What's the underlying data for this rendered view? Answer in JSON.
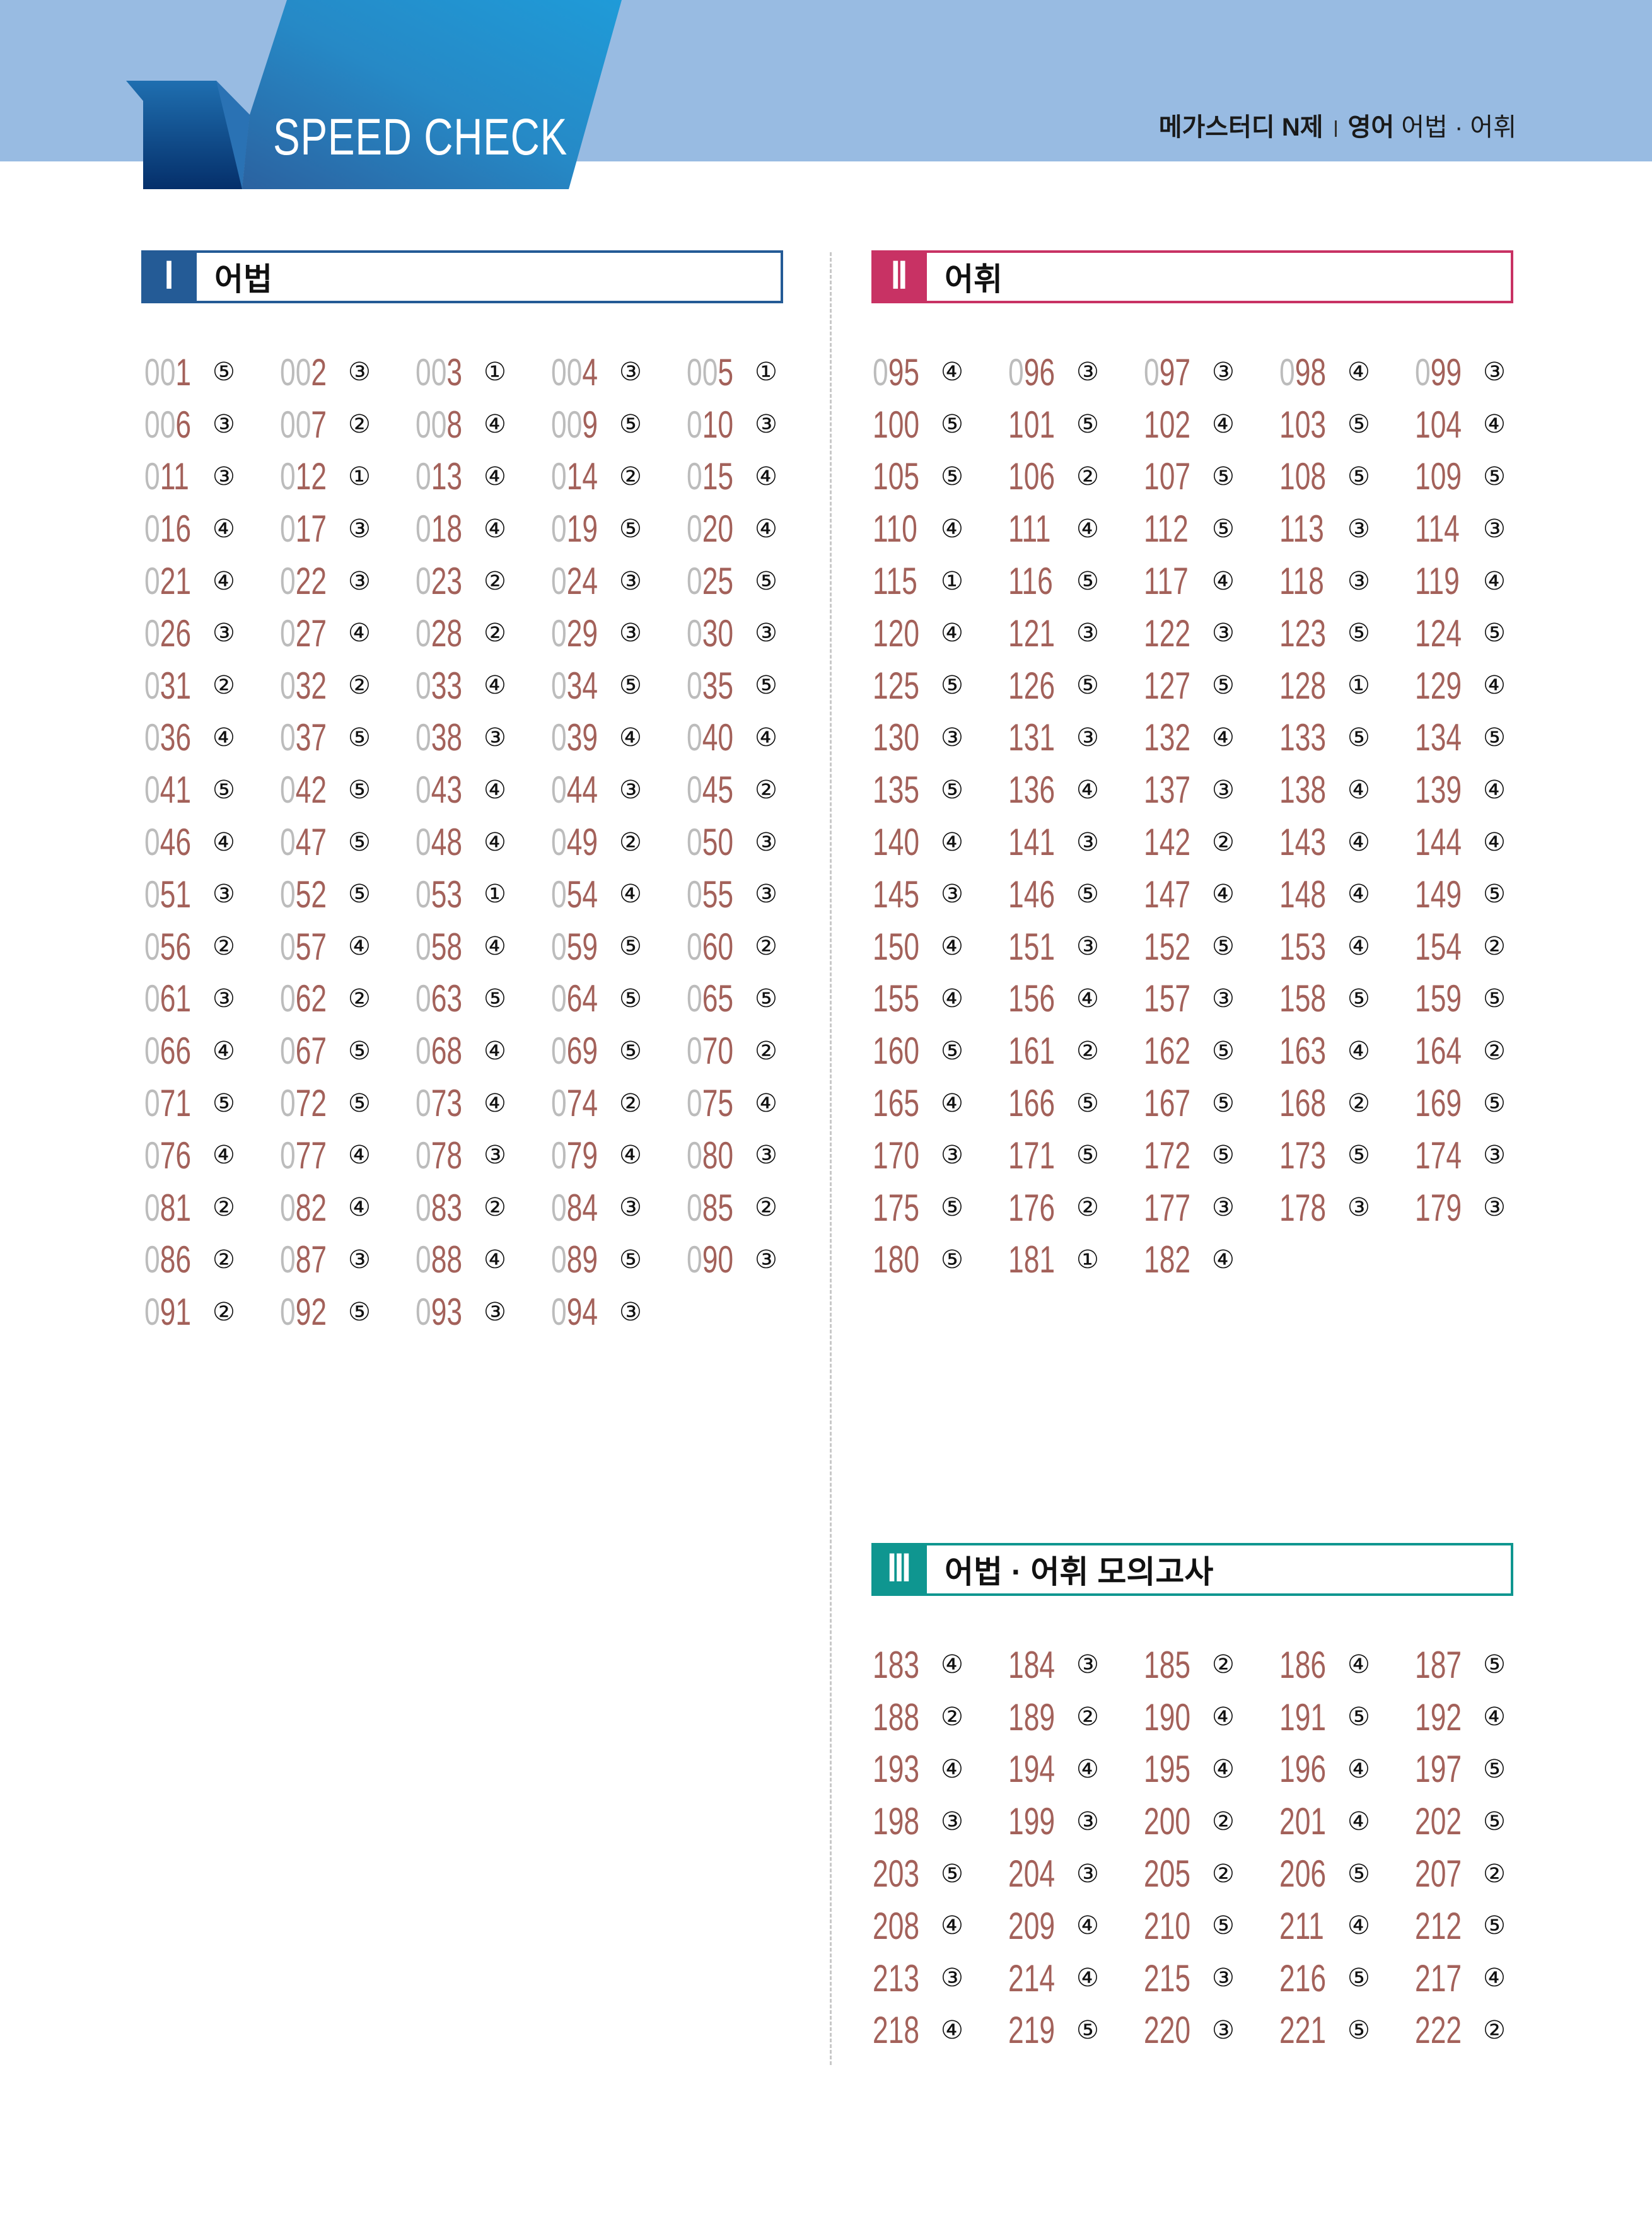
{
  "header": {
    "logo_text": "SPEED CHECK",
    "book": "메가스터디 N제",
    "subject": "영어",
    "topic": "어법 · 어휘"
  },
  "colors": {
    "band": "#98bbe2",
    "section1": "#245b96",
    "section2": "#c83264",
    "section3": "#0f9690",
    "number": "#a3615a",
    "leading_zero": "#bcbcbc"
  },
  "sections": [
    {
      "roman": "Ⅰ",
      "title": "어법",
      "items": [
        [
          "001",
          "⑤"
        ],
        [
          "002",
          "③"
        ],
        [
          "003",
          "①"
        ],
        [
          "004",
          "③"
        ],
        [
          "005",
          "①"
        ],
        [
          "006",
          "③"
        ],
        [
          "007",
          "②"
        ],
        [
          "008",
          "④"
        ],
        [
          "009",
          "⑤"
        ],
        [
          "010",
          "③"
        ],
        [
          "011",
          "③"
        ],
        [
          "012",
          "①"
        ],
        [
          "013",
          "④"
        ],
        [
          "014",
          "②"
        ],
        [
          "015",
          "④"
        ],
        [
          "016",
          "④"
        ],
        [
          "017",
          "③"
        ],
        [
          "018",
          "④"
        ],
        [
          "019",
          "⑤"
        ],
        [
          "020",
          "④"
        ],
        [
          "021",
          "④"
        ],
        [
          "022",
          "③"
        ],
        [
          "023",
          "②"
        ],
        [
          "024",
          "③"
        ],
        [
          "025",
          "⑤"
        ],
        [
          "026",
          "③"
        ],
        [
          "027",
          "④"
        ],
        [
          "028",
          "②"
        ],
        [
          "029",
          "③"
        ],
        [
          "030",
          "③"
        ],
        [
          "031",
          "②"
        ],
        [
          "032",
          "②"
        ],
        [
          "033",
          "④"
        ],
        [
          "034",
          "⑤"
        ],
        [
          "035",
          "⑤"
        ],
        [
          "036",
          "④"
        ],
        [
          "037",
          "⑤"
        ],
        [
          "038",
          "③"
        ],
        [
          "039",
          "④"
        ],
        [
          "040",
          "④"
        ],
        [
          "041",
          "⑤"
        ],
        [
          "042",
          "⑤"
        ],
        [
          "043",
          "④"
        ],
        [
          "044",
          "③"
        ],
        [
          "045",
          "②"
        ],
        [
          "046",
          "④"
        ],
        [
          "047",
          "⑤"
        ],
        [
          "048",
          "④"
        ],
        [
          "049",
          "②"
        ],
        [
          "050",
          "③"
        ],
        [
          "051",
          "③"
        ],
        [
          "052",
          "⑤"
        ],
        [
          "053",
          "①"
        ],
        [
          "054",
          "④"
        ],
        [
          "055",
          "③"
        ],
        [
          "056",
          "②"
        ],
        [
          "057",
          "④"
        ],
        [
          "058",
          "④"
        ],
        [
          "059",
          "⑤"
        ],
        [
          "060",
          "②"
        ],
        [
          "061",
          "③"
        ],
        [
          "062",
          "②"
        ],
        [
          "063",
          "⑤"
        ],
        [
          "064",
          "⑤"
        ],
        [
          "065",
          "⑤"
        ],
        [
          "066",
          "④"
        ],
        [
          "067",
          "⑤"
        ],
        [
          "068",
          "④"
        ],
        [
          "069",
          "⑤"
        ],
        [
          "070",
          "②"
        ],
        [
          "071",
          "⑤"
        ],
        [
          "072",
          "⑤"
        ],
        [
          "073",
          "④"
        ],
        [
          "074",
          "②"
        ],
        [
          "075",
          "④"
        ],
        [
          "076",
          "④"
        ],
        [
          "077",
          "④"
        ],
        [
          "078",
          "③"
        ],
        [
          "079",
          "④"
        ],
        [
          "080",
          "③"
        ],
        [
          "081",
          "②"
        ],
        [
          "082",
          "④"
        ],
        [
          "083",
          "②"
        ],
        [
          "084",
          "③"
        ],
        [
          "085",
          "②"
        ],
        [
          "086",
          "②"
        ],
        [
          "087",
          "③"
        ],
        [
          "088",
          "④"
        ],
        [
          "089",
          "⑤"
        ],
        [
          "090",
          "③"
        ],
        [
          "091",
          "②"
        ],
        [
          "092",
          "⑤"
        ],
        [
          "093",
          "③"
        ],
        [
          "094",
          "③"
        ]
      ]
    },
    {
      "roman": "Ⅱ",
      "title": "어휘",
      "items": [
        [
          "095",
          "④"
        ],
        [
          "096",
          "③"
        ],
        [
          "097",
          "③"
        ],
        [
          "098",
          "④"
        ],
        [
          "099",
          "③"
        ],
        [
          "100",
          "⑤"
        ],
        [
          "101",
          "⑤"
        ],
        [
          "102",
          "④"
        ],
        [
          "103",
          "⑤"
        ],
        [
          "104",
          "④"
        ],
        [
          "105",
          "⑤"
        ],
        [
          "106",
          "②"
        ],
        [
          "107",
          "⑤"
        ],
        [
          "108",
          "⑤"
        ],
        [
          "109",
          "⑤"
        ],
        [
          "110",
          "④"
        ],
        [
          "111",
          "④"
        ],
        [
          "112",
          "⑤"
        ],
        [
          "113",
          "③"
        ],
        [
          "114",
          "③"
        ],
        [
          "115",
          "①"
        ],
        [
          "116",
          "⑤"
        ],
        [
          "117",
          "④"
        ],
        [
          "118",
          "③"
        ],
        [
          "119",
          "④"
        ],
        [
          "120",
          "④"
        ],
        [
          "121",
          "③"
        ],
        [
          "122",
          "③"
        ],
        [
          "123",
          "⑤"
        ],
        [
          "124",
          "⑤"
        ],
        [
          "125",
          "⑤"
        ],
        [
          "126",
          "⑤"
        ],
        [
          "127",
          "⑤"
        ],
        [
          "128",
          "①"
        ],
        [
          "129",
          "④"
        ],
        [
          "130",
          "③"
        ],
        [
          "131",
          "③"
        ],
        [
          "132",
          "④"
        ],
        [
          "133",
          "⑤"
        ],
        [
          "134",
          "⑤"
        ],
        [
          "135",
          "⑤"
        ],
        [
          "136",
          "④"
        ],
        [
          "137",
          "③"
        ],
        [
          "138",
          "④"
        ],
        [
          "139",
          "④"
        ],
        [
          "140",
          "④"
        ],
        [
          "141",
          "③"
        ],
        [
          "142",
          "②"
        ],
        [
          "143",
          "④"
        ],
        [
          "144",
          "④"
        ],
        [
          "145",
          "③"
        ],
        [
          "146",
          "⑤"
        ],
        [
          "147",
          "④"
        ],
        [
          "148",
          "④"
        ],
        [
          "149",
          "⑤"
        ],
        [
          "150",
          "④"
        ],
        [
          "151",
          "③"
        ],
        [
          "152",
          "⑤"
        ],
        [
          "153",
          "④"
        ],
        [
          "154",
          "②"
        ],
        [
          "155",
          "④"
        ],
        [
          "156",
          "④"
        ],
        [
          "157",
          "③"
        ],
        [
          "158",
          "⑤"
        ],
        [
          "159",
          "⑤"
        ],
        [
          "160",
          "⑤"
        ],
        [
          "161",
          "②"
        ],
        [
          "162",
          "⑤"
        ],
        [
          "163",
          "④"
        ],
        [
          "164",
          "②"
        ],
        [
          "165",
          "④"
        ],
        [
          "166",
          "⑤"
        ],
        [
          "167",
          "⑤"
        ],
        [
          "168",
          "②"
        ],
        [
          "169",
          "⑤"
        ],
        [
          "170",
          "③"
        ],
        [
          "171",
          "⑤"
        ],
        [
          "172",
          "⑤"
        ],
        [
          "173",
          "⑤"
        ],
        [
          "174",
          "③"
        ],
        [
          "175",
          "⑤"
        ],
        [
          "176",
          "②"
        ],
        [
          "177",
          "③"
        ],
        [
          "178",
          "③"
        ],
        [
          "179",
          "③"
        ],
        [
          "180",
          "⑤"
        ],
        [
          "181",
          "①"
        ],
        [
          "182",
          "④"
        ]
      ]
    },
    {
      "roman": "Ⅲ",
      "title": "어법 · 어휘 모의고사",
      "items": [
        [
          "183",
          "④"
        ],
        [
          "184",
          "③"
        ],
        [
          "185",
          "②"
        ],
        [
          "186",
          "④"
        ],
        [
          "187",
          "⑤"
        ],
        [
          "188",
          "②"
        ],
        [
          "189",
          "②"
        ],
        [
          "190",
          "④"
        ],
        [
          "191",
          "⑤"
        ],
        [
          "192",
          "④"
        ],
        [
          "193",
          "④"
        ],
        [
          "194",
          "④"
        ],
        [
          "195",
          "④"
        ],
        [
          "196",
          "④"
        ],
        [
          "197",
          "⑤"
        ],
        [
          "198",
          "③"
        ],
        [
          "199",
          "③"
        ],
        [
          "200",
          "②"
        ],
        [
          "201",
          "④"
        ],
        [
          "202",
          "⑤"
        ],
        [
          "203",
          "⑤"
        ],
        [
          "204",
          "③"
        ],
        [
          "205",
          "②"
        ],
        [
          "206",
          "⑤"
        ],
        [
          "207",
          "②"
        ],
        [
          "208",
          "④"
        ],
        [
          "209",
          "④"
        ],
        [
          "210",
          "⑤"
        ],
        [
          "211",
          "④"
        ],
        [
          "212",
          "⑤"
        ],
        [
          "213",
          "③"
        ],
        [
          "214",
          "④"
        ],
        [
          "215",
          "③"
        ],
        [
          "216",
          "⑤"
        ],
        [
          "217",
          "④"
        ],
        [
          "218",
          "④"
        ],
        [
          "219",
          "⑤"
        ],
        [
          "220",
          "③"
        ],
        [
          "221",
          "⑤"
        ],
        [
          "222",
          "②"
        ]
      ]
    }
  ]
}
